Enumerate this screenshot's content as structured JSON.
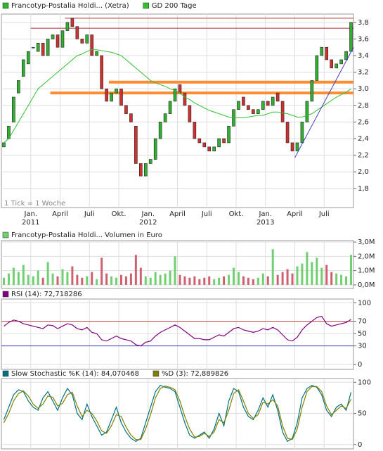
{
  "chart_data": [
    {
      "type": "candlestick",
      "series": [
        {
          "name": "Francotyp-Postalia Holdi... (Xetra)",
          "color": "#30b030",
          "open": [
            2.3,
            2.4,
            2.6,
            2.95,
            3.15,
            3.3,
            3.5,
            3.45,
            3.55,
            3.4,
            3.6,
            3.65,
            3.5,
            3.7,
            3.85,
            3.75,
            3.6,
            3.55,
            3.65,
            3.4,
            3.4,
            3.0,
            2.85,
            2.95,
            3.0,
            2.8,
            2.7,
            2.55,
            2.1,
            1.95,
            2.1,
            2.15,
            2.4,
            2.6,
            2.7,
            2.85,
            3.05,
            2.95,
            2.8,
            2.6,
            2.4,
            2.35,
            2.3,
            2.25,
            2.3,
            2.4,
            2.35,
            2.55,
            2.75,
            2.9,
            2.8,
            2.75,
            2.7,
            2.75,
            2.85,
            2.8,
            2.95,
            2.85,
            2.6,
            2.35,
            2.25,
            2.35,
            2.6,
            2.85,
            3.1,
            3.4,
            3.5,
            3.35,
            3.25,
            3.3,
            3.35,
            3.45
          ],
          "close": [
            2.35,
            2.55,
            2.9,
            3.1,
            3.35,
            3.45,
            3.5,
            3.55,
            3.4,
            3.6,
            3.65,
            3.5,
            3.7,
            3.8,
            3.75,
            3.6,
            3.55,
            3.65,
            3.4,
            3.45,
            3.0,
            2.85,
            2.95,
            3.0,
            2.8,
            2.7,
            2.6,
            2.1,
            1.95,
            2.1,
            2.15,
            2.4,
            2.6,
            2.7,
            2.85,
            3.0,
            2.95,
            2.8,
            2.6,
            2.4,
            2.35,
            2.3,
            2.25,
            2.3,
            2.4,
            2.35,
            2.55,
            2.75,
            2.85,
            2.8,
            2.75,
            2.7,
            2.75,
            2.85,
            2.8,
            2.9,
            2.85,
            2.6,
            2.35,
            2.25,
            2.35,
            2.6,
            2.85,
            3.1,
            3.4,
            3.5,
            3.35,
            3.25,
            3.3,
            3.35,
            3.45,
            3.8
          ]
        },
        {
          "name": "GD 200 Tage",
          "color": "#30c030",
          "values": [
            2.35,
            2.4,
            2.5,
            2.6,
            2.7,
            2.8,
            2.9,
            3.0,
            3.05,
            3.1,
            3.15,
            3.2,
            3.25,
            3.3,
            3.35,
            3.4,
            3.42,
            3.45,
            3.47,
            3.47,
            3.46,
            3.45,
            3.44,
            3.42,
            3.4,
            3.35,
            3.3,
            3.25,
            3.2,
            3.15,
            3.1,
            3.07,
            3.05,
            3.03,
            3.0,
            2.98,
            2.95,
            2.9,
            2.87,
            2.83,
            2.8,
            2.77,
            2.74,
            2.72,
            2.7,
            2.68,
            2.66,
            2.65,
            2.65,
            2.65,
            2.66,
            2.67,
            2.68,
            2.68,
            2.7,
            2.72,
            2.72,
            2.71,
            2.7,
            2.68,
            2.66,
            2.66,
            2.68,
            2.7,
            2.74,
            2.78,
            2.82,
            2.86,
            2.9,
            2.93,
            2.96,
            3.0
          ]
        }
      ],
      "levels": [
        {
          "value": 3.85,
          "from": 13,
          "color": "#b03030"
        },
        {
          "value": 3.73,
          "from": 6,
          "color": "#b03030"
        },
        {
          "value": 3.08,
          "from": 22,
          "color": "#ff8c30"
        },
        {
          "value": 2.95,
          "from": 10,
          "color": "#ff8c30"
        }
      ],
      "trendline": {
        "x": [
          60,
          72
        ],
        "y": [
          2.17,
          3.5
        ],
        "color": "#4040c0"
      },
      "note": "1 Tick = 1 Woche",
      "xlim": [
        0,
        72
      ],
      "xticks": [
        {
          "value": 6,
          "label": "Jan."
        },
        {
          "value": 12,
          "label": "April"
        },
        {
          "value": 18,
          "label": "Juli"
        },
        {
          "value": 24,
          "label": "Okt."
        },
        {
          "value": 30,
          "label": "Jan."
        },
        {
          "value": 36,
          "label": "April"
        },
        {
          "value": 42,
          "label": "Juli"
        },
        {
          "value": 48,
          "label": "Okt."
        },
        {
          "value": 54,
          "label": "Jan."
        },
        {
          "value": 60,
          "label": "April"
        },
        {
          "value": 66,
          "label": "Juli"
        }
      ],
      "years": [
        {
          "value": 6,
          "label": "2011"
        },
        {
          "value": 30,
          "label": "2012"
        },
        {
          "value": 54,
          "label": "2013"
        }
      ],
      "ylim": [
        1.57,
        3.9
      ],
      "yticks": [
        {
          "value": 1.8,
          "label": "1,8"
        },
        {
          "value": 2.0,
          "label": "2,0"
        },
        {
          "value": 2.2,
          "label": "2,2"
        },
        {
          "value": 2.4,
          "label": "2,4"
        },
        {
          "value": 2.6,
          "label": "2,6"
        },
        {
          "value": 2.8,
          "label": "2,8"
        },
        {
          "value": 3.0,
          "label": "3,0"
        },
        {
          "value": 3.2,
          "label": "3,2"
        },
        {
          "value": 3.4,
          "label": "3,4"
        },
        {
          "value": 3.6,
          "label": "3,6"
        },
        {
          "value": 3.8,
          "label": "3,8"
        }
      ],
      "grid": true
    },
    {
      "type": "bar",
      "series": [
        {
          "name": "Francotyp-Postalia Holdi... Volumen in Euro",
          "color": "#70d070",
          "values": [
            0.5,
            0.8,
            1.2,
            0.9,
            1.4,
            0.7,
            0.6,
            1.0,
            0.5,
            1.6,
            0.8,
            0.6,
            1.1,
            0.9,
            1.3,
            0.7,
            0.5,
            0.6,
            0.9,
            0.4,
            1.9,
            0.8,
            0.6,
            0.5,
            0.7,
            0.6,
            0.8,
            2.1,
            1.2,
            0.6,
            0.5,
            0.9,
            0.7,
            0.8,
            1.0,
            2.0,
            0.7,
            0.6,
            0.5,
            0.6,
            0.4,
            0.5,
            0.6,
            0.4,
            0.5,
            0.6,
            0.7,
            1.2,
            0.9,
            0.6,
            0.5,
            0.4,
            0.5,
            0.8,
            0.6,
            2.5,
            0.7,
            0.9,
            1.1,
            0.8,
            1.3,
            1.5,
            2.3,
            1.6,
            1.9,
            1.2,
            1.4,
            0.9,
            0.8,
            0.7,
            0.6,
            2.1
          ]
        }
      ],
      "ylim": [
        -0.25,
        3.1
      ],
      "yticks": [
        {
          "value": 0,
          "label": "0,0M"
        },
        {
          "value": 1,
          "label": "1,0M"
        },
        {
          "value": 2,
          "label": "2,0M"
        },
        {
          "value": 3,
          "label": "3,0M"
        }
      ],
      "grid": true
    },
    {
      "type": "line",
      "series": [
        {
          "name": "RSI (14): 72,718286",
          "color": "#800080",
          "values": [
            62,
            68,
            72,
            70,
            66,
            64,
            62,
            60,
            58,
            64,
            63,
            58,
            62,
            66,
            64,
            58,
            56,
            60,
            52,
            50,
            40,
            38,
            42,
            46,
            42,
            40,
            38,
            32,
            30,
            36,
            38,
            46,
            52,
            56,
            60,
            64,
            60,
            54,
            48,
            42,
            42,
            40,
            40,
            44,
            48,
            46,
            52,
            58,
            60,
            56,
            54,
            52,
            54,
            58,
            56,
            60,
            56,
            48,
            40,
            38,
            44,
            56,
            64,
            70,
            76,
            78,
            66,
            62,
            64,
            66,
            68,
            73
          ]
        }
      ],
      "levels": [
        {
          "value": 70,
          "from": 0,
          "color": "#c04040"
        },
        {
          "value": 30,
          "from": 0,
          "color": "#4040c0"
        }
      ],
      "ylim": [
        -8,
        106
      ],
      "yticks": [
        0,
        30,
        50,
        70,
        100
      ],
      "grid": true
    },
    {
      "type": "line",
      "series": [
        {
          "name": "Slow Stochastic %K (14): 84,070468",
          "color": "#007080",
          "values": [
            40,
            60,
            80,
            88,
            85,
            70,
            60,
            55,
            75,
            85,
            70,
            55,
            75,
            90,
            80,
            50,
            40,
            65,
            45,
            30,
            15,
            20,
            40,
            60,
            35,
            20,
            10,
            5,
            10,
            35,
            60,
            85,
            95,
            92,
            90,
            85,
            60,
            35,
            15,
            10,
            15,
            20,
            10,
            25,
            50,
            30,
            70,
            90,
            85,
            60,
            45,
            40,
            55,
            75,
            60,
            80,
            55,
            20,
            5,
            10,
            35,
            75,
            90,
            95,
            92,
            80,
            55,
            45,
            60,
            65,
            55,
            84
          ]
        },
        {
          "name": "%D (3): 72,889826",
          "color": "#808000",
          "values": [
            35,
            50,
            70,
            82,
            86,
            78,
            65,
            58,
            65,
            78,
            76,
            62,
            66,
            80,
            84,
            62,
            45,
            55,
            50,
            38,
            22,
            18,
            30,
            48,
            45,
            28,
            15,
            8,
            8,
            25,
            48,
            75,
            90,
            94,
            92,
            88,
            70,
            45,
            25,
            12,
            13,
            18,
            13,
            20,
            40,
            35,
            55,
            82,
            88,
            70,
            50,
            42,
            48,
            68,
            65,
            72,
            62,
            30,
            10,
            8,
            25,
            60,
            85,
            93,
            93,
            85,
            62,
            48,
            55,
            62,
            58,
            73
          ]
        }
      ],
      "ylim": [
        -7,
        106
      ],
      "yticks": [
        0,
        50,
        100
      ],
      "grid": true
    }
  ]
}
